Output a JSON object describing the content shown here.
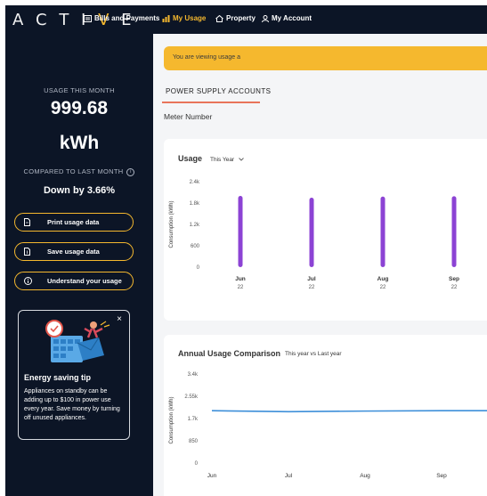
{
  "brand": {
    "logo": "ACTIVE",
    "accent": "#f5b82e"
  },
  "nav": {
    "bills": "Bills and Payments",
    "usage": "My Usage",
    "property": "Property",
    "account": "My Account"
  },
  "sidebar": {
    "usage_label": "USAGE THIS MONTH",
    "usage_value": "999.68",
    "usage_unit": "kWh",
    "compared_label": "COMPARED TO LAST MONTH",
    "compared_value": "Down by 3.66%",
    "buttons": {
      "print": "Print usage data",
      "save": "Save usage data",
      "understand": "Understand your usage"
    },
    "tip": {
      "close": "×",
      "title": "Energy saving tip",
      "body": "Appliances on standby can be adding up to $100 in power use every year. Save money by turning off unused appliances."
    }
  },
  "main": {
    "banner": "You are viewing usage a",
    "tab": "POWER SUPPLY ACCOUNTS",
    "meter_label": "Meter Number",
    "usage_card": {
      "title": "Usage",
      "period": "This Year"
    },
    "annual_card": {
      "title": "Annual Usage Comparison",
      "compare": "This year vs Last year"
    }
  },
  "chart_data": [
    {
      "type": "bar",
      "ylabel": "Consumption (kWh)",
      "yticks": [
        "0",
        "600",
        "1.2k",
        "1.8k",
        "2.4k"
      ],
      "ylim": [
        0,
        2400
      ],
      "categories": [
        "Jun",
        "Jul",
        "Aug",
        "Sep"
      ],
      "category_sublabels": [
        "22",
        "22",
        "22",
        "22"
      ],
      "values": [
        2000,
        1950,
        1980,
        1990
      ],
      "color": "#8c43d4"
    },
    {
      "type": "line",
      "ylabel": "Consumption (kWh)",
      "yticks": [
        "0",
        "850",
        "1.7k",
        "2.55k",
        "3.4k"
      ],
      "ylim": [
        0,
        3400
      ],
      "categories": [
        "Jun",
        "Jul",
        "Aug",
        "Sep"
      ],
      "values": [
        2000,
        1960,
        1985,
        2000
      ],
      "color": "#3d8fd9"
    }
  ]
}
